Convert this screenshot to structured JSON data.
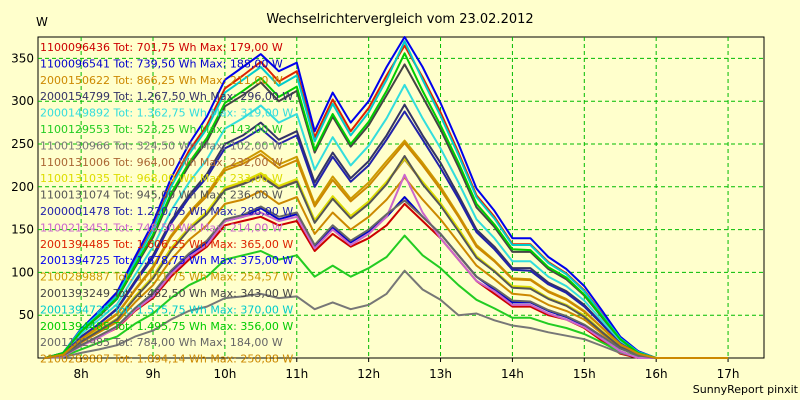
{
  "chart_data": {
    "type": "line",
    "title": "Wechselrichtervergleich vom 23.02.2012",
    "ylabel": "W",
    "footer": "SunnyReport pinxit",
    "ylim": [
      0,
      375
    ],
    "y_ticks": [
      50,
      100,
      150,
      200,
      250,
      300,
      350
    ],
    "x_range_hours": [
      7.4,
      17.5
    ],
    "x_ticks": [
      8,
      9,
      10,
      11,
      12,
      13,
      14,
      15,
      16,
      17
    ],
    "x_tick_labels": [
      "8h",
      "9h",
      "10h",
      "11h",
      "12h",
      "13h",
      "14h",
      "15h",
      "16h",
      "17h"
    ],
    "grid": true,
    "legend_placement": "top-left",
    "x": [
      7.5,
      7.75,
      8.0,
      8.25,
      8.5,
      8.75,
      9.0,
      9.25,
      9.5,
      9.75,
      10.0,
      10.25,
      10.5,
      10.75,
      11.0,
      11.25,
      11.5,
      11.75,
      12.0,
      12.25,
      12.5,
      12.75,
      13.0,
      13.25,
      13.5,
      13.75,
      14.0,
      14.25,
      14.5,
      14.75,
      15.0,
      15.25,
      15.5,
      15.75,
      16.0,
      16.25,
      16.5,
      16.75,
      17.0
    ],
    "series": [
      {
        "name": "1100096436 Tot: 701,75 Wh Max: 179,00 W",
        "color": "#cc0000",
        "values": [
          0,
          2,
          15,
          25,
          35,
          55,
          70,
          95,
          115,
          130,
          155,
          160,
          165,
          155,
          160,
          125,
          145,
          130,
          140,
          155,
          180,
          160,
          140,
          115,
          90,
          75,
          60,
          60,
          50,
          45,
          35,
          20,
          5,
          0,
          0,
          0,
          0,
          0,
          0
        ]
      },
      {
        "name": "1100096541 Tot: 739,50 Wh Max: 188,00 W",
        "color": "#0000cc",
        "values": [
          0,
          2,
          15,
          25,
          37,
          58,
          75,
          100,
          120,
          135,
          160,
          165,
          175,
          162,
          168,
          130,
          152,
          135,
          148,
          165,
          188,
          165,
          145,
          120,
          95,
          80,
          65,
          65,
          55,
          48,
          38,
          22,
          8,
          0,
          0,
          0,
          0,
          0,
          0
        ]
      },
      {
        "name": "2000150622 Tot: 866,25 Wh Max: 211,00 W",
        "color": "#cc8800",
        "values": [
          0,
          3,
          18,
          30,
          42,
          65,
          85,
          115,
          138,
          155,
          180,
          185,
          195,
          180,
          188,
          145,
          170,
          150,
          165,
          185,
          211,
          185,
          162,
          135,
          108,
          92,
          75,
          73,
          62,
          55,
          45,
          28,
          12,
          3,
          0,
          0,
          0,
          0,
          0
        ]
      },
      {
        "name": "2000154799 Tot: 1.267,50 Wh Max: 296,00 W",
        "color": "#333366",
        "values": [
          0,
          5,
          25,
          40,
          58,
          90,
          120,
          160,
          190,
          215,
          250,
          260,
          275,
          255,
          265,
          205,
          240,
          210,
          230,
          260,
          296,
          260,
          228,
          190,
          150,
          130,
          105,
          105,
          88,
          78,
          62,
          40,
          18,
          5,
          0,
          0,
          0,
          0,
          0
        ]
      },
      {
        "name": "2000149892 Tot: 1.362,75 Wh Max: 319,00 W",
        "color": "#33dddd",
        "values": [
          0,
          5,
          28,
          45,
          63,
          97,
          130,
          172,
          205,
          232,
          268,
          280,
          295,
          275,
          285,
          220,
          258,
          225,
          248,
          280,
          319,
          280,
          245,
          205,
          162,
          140,
          113,
          113,
          95,
          84,
          67,
          43,
          20,
          6,
          0,
          0,
          0,
          0,
          0
        ]
      },
      {
        "name": "1100129553 Tot: 523,25 Wh Max: 143,00 W",
        "color": "#22cc22",
        "values": [
          0,
          2,
          10,
          18,
          25,
          40,
          52,
          70,
          85,
          95,
          115,
          120,
          125,
          115,
          120,
          95,
          108,
          95,
          105,
          118,
          143,
          120,
          105,
          85,
          68,
          58,
          47,
          47,
          40,
          35,
          28,
          18,
          7,
          2,
          0,
          0,
          0,
          0,
          0
        ]
      },
      {
        "name": "1100130966 Tot: 324,50 Wh Max: 102,00 W",
        "color": "#777777",
        "values": [
          0,
          1,
          6,
          10,
          15,
          25,
          32,
          45,
          55,
          60,
          70,
          72,
          75,
          70,
          72,
          57,
          65,
          57,
          62,
          75,
          102,
          80,
          68,
          50,
          52,
          44,
          38,
          35,
          30,
          26,
          22,
          14,
          6,
          1,
          0,
          0,
          0,
          0,
          0
        ]
      },
      {
        "name": "1100131006 Tot: 964,00 Wh Max: 232,00 W",
        "color": "#aa6633",
        "values": [
          0,
          3,
          20,
          33,
          46,
          72,
          95,
          128,
          152,
          170,
          198,
          205,
          215,
          200,
          208,
          160,
          188,
          165,
          182,
          205,
          232,
          205,
          180,
          150,
          118,
          102,
          83,
          82,
          70,
          62,
          49,
          31,
          14,
          4,
          0,
          0,
          0,
          0,
          0
        ]
      },
      {
        "name": "1100131035 Tot: 968,00 Wh Max: 233,00 W",
        "color": "#dddd00",
        "values": [
          0,
          3,
          20,
          33,
          46,
          72,
          95,
          128,
          152,
          171,
          199,
          206,
          216,
          201,
          209,
          161,
          189,
          166,
          183,
          206,
          233,
          206,
          181,
          151,
          119,
          102,
          84,
          83,
          70,
          62,
          50,
          31,
          14,
          4,
          0,
          0,
          0,
          0,
          0
        ]
      },
      {
        "name": "1100131074 Tot: 945,00 Wh Max: 236,00 W",
        "color": "#555555",
        "values": [
          0,
          3,
          19,
          32,
          45,
          70,
          93,
          125,
          150,
          168,
          196,
          203,
          212,
          198,
          206,
          158,
          186,
          163,
          180,
          203,
          236,
          203,
          178,
          148,
          117,
          101,
          82,
          81,
          69,
          61,
          48,
          30,
          13,
          4,
          0,
          0,
          0,
          0,
          0
        ]
      },
      {
        "name": "2000001478 Tot: 1.220,75 Wh Max: 288,00 W",
        "color": "#2222aa",
        "values": [
          0,
          5,
          24,
          40,
          57,
          88,
          117,
          157,
          187,
          211,
          245,
          255,
          268,
          250,
          260,
          200,
          235,
          206,
          225,
          255,
          288,
          255,
          222,
          186,
          147,
          127,
          103,
          102,
          86,
          76,
          60,
          39,
          17,
          5,
          0,
          0,
          0,
          0,
          0
        ]
      },
      {
        "name": "1100213451 Tot: 748,50 Wh Max: 214,00 W",
        "color": "#cc66cc",
        "values": [
          0,
          2,
          14,
          24,
          36,
          56,
          72,
          98,
          118,
          132,
          160,
          165,
          170,
          160,
          165,
          128,
          150,
          132,
          145,
          165,
          214,
          170,
          140,
          115,
          90,
          78,
          62,
          62,
          52,
          45,
          36,
          22,
          8,
          0,
          0,
          0,
          0,
          0,
          0
        ]
      },
      {
        "name": "2001394485 Tot: 1.606,25 Wh Max: 365,00 W",
        "color": "#dd2200",
        "values": [
          0,
          6,
          33,
          53,
          74,
          114,
          152,
          203,
          242,
          272,
          315,
          330,
          346,
          323,
          335,
          258,
          302,
          265,
          292,
          330,
          365,
          328,
          287,
          240,
          190,
          165,
          133,
          133,
          112,
          99,
          79,
          51,
          23,
          7,
          0,
          0,
          0,
          0,
          0
        ]
      },
      {
        "name": "2001394725 Tot: 1.678,75 Wh Max: 375,00 W",
        "color": "#0000ee",
        "values": [
          0,
          6,
          34,
          55,
          77,
          118,
          158,
          210,
          250,
          282,
          325,
          340,
          355,
          335,
          345,
          265,
          310,
          275,
          300,
          340,
          375,
          340,
          298,
          250,
          198,
          172,
          140,
          140,
          118,
          104,
          84,
          55,
          25,
          8,
          0,
          0,
          0,
          0,
          0
        ]
      },
      {
        "name": "2100289887 Tot: 1.111,75 Wh Max: 254,57 W",
        "color": "#cc9900",
        "values": [
          0,
          4,
          22,
          37,
          52,
          80,
          107,
          143,
          170,
          192,
          222,
          230,
          242,
          226,
          235,
          180,
          212,
          186,
          205,
          230,
          254,
          228,
          200,
          167,
          132,
          114,
          93,
          92,
          78,
          69,
          55,
          35,
          16,
          5,
          0,
          0,
          0,
          0,
          0
        ]
      },
      {
        "name": "2001393249 Tot: 1.482,50 Wh Max: 343,00 W",
        "color": "#444444",
        "values": [
          0,
          6,
          31,
          49,
          69,
          106,
          141,
          189,
          225,
          253,
          294,
          307,
          322,
          300,
          312,
          240,
          282,
          247,
          272,
          307,
          343,
          305,
          267,
          223,
          176,
          153,
          124,
          124,
          104,
          92,
          73,
          47,
          22,
          6,
          0,
          0,
          0,
          0,
          0
        ]
      },
      {
        "name": "2001394723 Tot: 1.575,75 Wh Max: 370,00 W",
        "color": "#00cccc",
        "values": [
          0,
          6,
          33,
          52,
          73,
          112,
          150,
          200,
          238,
          268,
          310,
          325,
          340,
          318,
          330,
          253,
          297,
          260,
          287,
          325,
          370,
          325,
          283,
          237,
          188,
          163,
          132,
          132,
          111,
          98,
          78,
          50,
          23,
          7,
          0,
          0,
          0,
          0,
          0
        ]
      },
      {
        "name": "2001394485 Tot: 1.495,75 Wh Max: 356,00 W",
        "color": "#00cc00",
        "values": [
          0,
          6,
          31,
          50,
          70,
          108,
          144,
          192,
          228,
          257,
          298,
          312,
          327,
          305,
          317,
          243,
          285,
          250,
          276,
          312,
          356,
          312,
          272,
          228,
          180,
          156,
          127,
          126,
          106,
          94,
          74,
          48,
          22,
          6,
          0,
          0,
          0,
          0,
          0
        ]
      },
      {
        "name": "2001102985 Tot: 784,00 Wh Max: 184,00 W",
        "color": "#666666",
        "values": [
          0,
          3,
          15,
          26,
          37,
          58,
          76,
          102,
          122,
          137,
          162,
          167,
          177,
          165,
          170,
          132,
          155,
          137,
          150,
          168,
          184,
          165,
          145,
          120,
          95,
          82,
          67,
          66,
          56,
          49,
          39,
          25,
          11,
          3,
          0,
          0,
          0,
          0,
          0
        ]
      },
      {
        "name": "2100289887 Tot: 1.094,14 Wh Max: 250,88 W",
        "color": "#cc8800",
        "values": [
          0,
          4,
          22,
          36,
          51,
          79,
          105,
          141,
          168,
          189,
          219,
          227,
          238,
          222,
          231,
          177,
          208,
          183,
          201,
          226,
          251,
          225,
          197,
          165,
          130,
          113,
          92,
          91,
          77,
          68,
          54,
          35,
          16,
          5,
          0,
          0,
          0,
          0,
          0
        ]
      }
    ]
  }
}
